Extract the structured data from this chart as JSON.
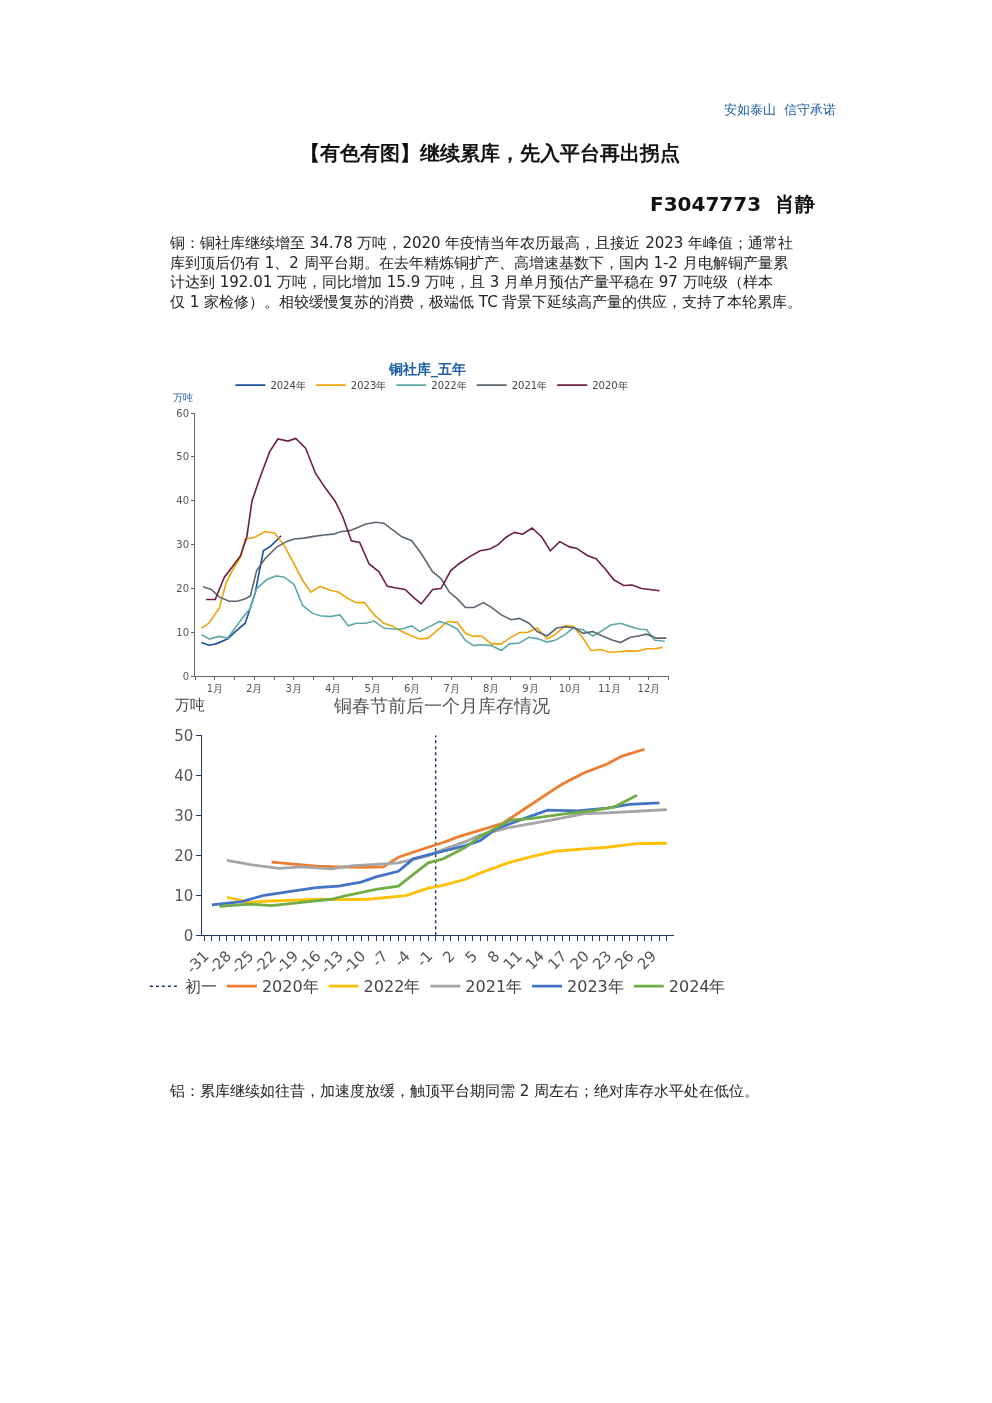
{
  "chart_data": [
    {
      "type": "line",
      "title": "铜社库_五年",
      "ylabel": "万吨",
      "legend": "top",
      "marker": "none",
      "line_style": "solid",
      "xlim": [
        0.5,
        12.5
      ],
      "xticks": [
        {
          "value": 0.5,
          "label": null
        },
        {
          "value": 1,
          "label": "1月"
        },
        {
          "value": 1.5,
          "label": null
        },
        {
          "value": 2,
          "label": "2月"
        },
        {
          "value": 2.5,
          "label": null
        },
        {
          "value": 3,
          "label": "3月"
        },
        {
          "value": 3.5,
          "label": null
        },
        {
          "value": 4,
          "label": "4月"
        },
        {
          "value": 4.5,
          "label": null
        },
        {
          "value": 5,
          "label": "5月"
        },
        {
          "value": 5.5,
          "label": null
        },
        {
          "value": 6,
          "label": "6月"
        },
        {
          "value": 6.5,
          "label": null
        },
        {
          "value": 7,
          "label": "7月"
        },
        {
          "value": 7.5,
          "label": null
        },
        {
          "value": 8,
          "label": "8月"
        },
        {
          "value": 8.5,
          "label": null
        },
        {
          "value": 9,
          "label": "9月"
        },
        {
          "value": 9.5,
          "label": null
        },
        {
          "value": 10,
          "label": "10月"
        },
        {
          "value": 10.5,
          "label": null
        },
        {
          "value": 11,
          "label": "11月"
        },
        {
          "value": 11.5,
          "label": null
        },
        {
          "value": 12,
          "label": "12月"
        },
        {
          "value": 12.5,
          "label": null
        }
      ],
      "ylim": [
        0,
        60
      ],
      "yticks": [
        0,
        10,
        20,
        30,
        40,
        50,
        60
      ],
      "series": [
        {
          "name": "2024年",
          "color": "#1f4e9c",
          "x": [
            0.66,
            0.85,
            1.03,
            1.32,
            1.52,
            1.77,
            2.02,
            2.23,
            2.43,
            2.68
          ],
          "values": [
            7.7,
            7.1,
            7.4,
            8.5,
            10.2,
            12.1,
            18.9,
            28.6,
            29.8,
            32.0
          ]
        },
        {
          "name": "2023年",
          "color": "#f0a30a",
          "x": [
            0.66,
            0.85,
            1.11,
            1.28,
            1.44,
            1.65,
            1.77,
            2.02,
            2.27,
            2.52,
            2.76,
            3.01,
            3.22,
            3.43,
            3.67,
            3.92,
            4.13,
            4.38,
            4.58,
            4.79,
            5.04,
            5.28,
            5.49,
            5.74,
            5.99,
            6.19,
            6.4,
            6.65,
            6.9,
            7.14,
            7.35,
            7.56,
            7.76,
            8.01,
            8.26,
            8.47,
            8.72,
            8.92,
            9.17,
            9.42,
            9.62,
            9.87,
            10.08,
            10.33,
            10.53,
            10.78,
            10.99,
            11.23,
            11.48,
            11.7,
            11.94,
            12.15,
            12.35
          ],
          "values": [
            11.0,
            12.1,
            15.5,
            21.1,
            24.1,
            27.1,
            31.3,
            31.7,
            33.0,
            32.6,
            29.8,
            25.6,
            21.9,
            19.2,
            20.5,
            19.6,
            19.2,
            17.7,
            16.8,
            16.8,
            14.0,
            12.1,
            11.5,
            10.2,
            9.2,
            8.5,
            8.7,
            10.6,
            12.5,
            12.3,
            9.8,
            9.1,
            9.2,
            7.4,
            7.4,
            8.7,
            10.0,
            10.0,
            11.0,
            8.5,
            9.5,
            11.5,
            11.4,
            8.7,
            5.9,
            6.1,
            5.5,
            5.6,
            5.8,
            5.7,
            6.3,
            6.3,
            6.6
          ]
        },
        {
          "name": "2022年",
          "color": "#5fa8a8",
          "x": [
            0.66,
            0.86,
            1.11,
            1.32,
            1.48,
            1.69,
            1.9,
            2.06,
            2.31,
            2.56,
            2.76,
            3.01,
            3.22,
            3.47,
            3.67,
            3.92,
            4.17,
            4.38,
            4.58,
            4.83,
            5.04,
            5.28,
            5.49,
            5.74,
            5.99,
            6.19,
            6.48,
            6.69,
            6.9,
            7.14,
            7.35,
            7.56,
            7.76,
            8.01,
            8.26,
            8.47,
            8.72,
            8.96,
            9.17,
            9.42,
            9.62,
            9.87,
            10.08,
            10.33,
            10.58,
            10.78,
            11.03,
            11.28,
            11.48,
            11.73,
            11.94,
            12.15,
            12.4
          ],
          "values": [
            9.5,
            8.5,
            9.1,
            8.7,
            10.6,
            13.2,
            15.5,
            20.0,
            22.0,
            22.9,
            22.6,
            20.9,
            16.2,
            14.4,
            13.8,
            13.6,
            14.0,
            11.5,
            12.1,
            12.1,
            12.6,
            11.0,
            10.8,
            10.8,
            11.5,
            10.2,
            11.5,
            12.5,
            11.9,
            10.8,
            8.2,
            7.0,
            7.2,
            7.0,
            5.9,
            7.4,
            7.6,
            8.9,
            8.6,
            7.8,
            8.2,
            9.5,
            11.0,
            10.6,
            9.2,
            10.2,
            11.7,
            12.1,
            11.5,
            10.8,
            10.6,
            8.2,
            8.0
          ]
        },
        {
          "name": "2021年",
          "color": "#5b6670",
          "x": [
            0.7,
            0.91,
            1.11,
            1.36,
            1.57,
            1.77,
            1.9,
            2.06,
            2.27,
            2.56,
            2.81,
            3.01,
            3.26,
            3.51,
            3.76,
            4.0,
            4.21,
            4.42,
            4.62,
            4.83,
            5.08,
            5.28,
            5.49,
            5.74,
            5.99,
            6.23,
            6.52,
            6.73,
            6.94,
            7.14,
            7.35,
            7.56,
            7.81,
            8.01,
            8.26,
            8.51,
            8.72,
            8.96,
            9.17,
            9.42,
            9.66,
            9.87,
            10.12,
            10.33,
            10.58,
            10.82,
            11.07,
            11.28,
            11.53,
            11.73,
            11.94,
            12.19,
            12.44
          ],
          "values": [
            20.4,
            19.8,
            18.1,
            17.1,
            17.1,
            17.7,
            18.3,
            24.1,
            26.8,
            29.4,
            30.7,
            31.3,
            31.5,
            31.9,
            32.2,
            32.4,
            33.0,
            33.2,
            33.9,
            34.7,
            35.1,
            34.9,
            33.5,
            31.8,
            30.9,
            28.0,
            23.8,
            22.3,
            19.2,
            17.7,
            15.7,
            15.7,
            16.8,
            15.7,
            14.0,
            12.9,
            13.2,
            12.1,
            10.2,
            9.2,
            11.0,
            11.3,
            11.0,
            9.8,
            10.2,
            9.2,
            8.3,
            7.7,
            8.9,
            9.2,
            9.6,
            8.7,
            8.7
          ]
        },
        {
          "name": "2020年",
          "color": "#6d1f3f",
          "x": [
            0.78,
            1.01,
            1.24,
            1.44,
            1.65,
            1.81,
            1.94,
            2.14,
            2.39,
            2.6,
            2.85,
            3.05,
            3.3,
            3.55,
            3.8,
            4.05,
            4.25,
            4.46,
            4.67,
            4.91,
            5.16,
            5.37,
            5.57,
            5.82,
            6.07,
            6.23,
            6.52,
            6.73,
            6.98,
            7.18,
            7.43,
            7.72,
            7.97,
            8.18,
            8.38,
            8.59,
            8.8,
            9.04,
            9.29,
            9.5,
            9.74,
            9.99,
            10.16,
            10.45,
            10.66,
            10.91,
            11.11,
            11.36,
            11.57,
            11.81,
            12.02,
            12.27
          ],
          "values": [
            17.5,
            17.5,
            22.6,
            24.9,
            27.5,
            31.7,
            39.9,
            45.2,
            51.2,
            54.1,
            53.6,
            54.2,
            52.0,
            46.3,
            42.9,
            39.9,
            36.2,
            30.9,
            30.5,
            25.6,
            23.8,
            20.5,
            20.2,
            19.8,
            17.7,
            16.5,
            19.8,
            20.0,
            24.1,
            25.6,
            27.1,
            28.6,
            29.0,
            30.0,
            31.7,
            32.8,
            32.4,
            33.8,
            31.7,
            28.6,
            30.7,
            29.5,
            29.2,
            27.5,
            26.8,
            24.3,
            22.0,
            20.7,
            20.8,
            20.0,
            19.8,
            19.5
          ]
        }
      ],
      "annotations": [
        "安如泰山  信守承诺",
        "【有色有图】继续累库，先入平台再出拐点",
        "F3047773  肖静",
        "铜：铜社库继续增至 34.78 万吨，2020 年疫情当年农历最高，且接近 2023 年峰值；通常社库到顶后仍有 1、2 周平台期。在去年精炼铜扩产、高增速基数下，国内 1-2 月电解铜产量累计达到 192.01 万吨，同比增加 15.9 万吨，且 3 月单月预估产量平稳在 97 万吨级（样本仅 1 家检修）。相较缓慢复苏的消费，极端低 TC 背景下延续高产量的供应，支持了本轮累库。"
      ]
    },
    {
      "type": "line",
      "title": "铜春节前后一个月库存情况",
      "ylabel": "万吨",
      "legend": "bottom",
      "marker": "none",
      "line_style": "solid",
      "xlim": [
        -31.3,
        31.9
      ],
      "xticks": [
        -31,
        {
          "value": -30,
          "label": null
        },
        {
          "value": -29,
          "label": null
        },
        -28,
        {
          "value": -27,
          "label": null
        },
        {
          "value": -26,
          "label": null
        },
        -25,
        {
          "value": -24,
          "label": null
        },
        {
          "value": -23,
          "label": null
        },
        -22,
        {
          "value": -21,
          "label": null
        },
        {
          "value": -20,
          "label": null
        },
        -19,
        {
          "value": -18,
          "label": null
        },
        {
          "value": -17,
          "label": null
        },
        -16,
        {
          "value": -15,
          "label": null
        },
        {
          "value": -14,
          "label": null
        },
        -13,
        {
          "value": -12,
          "label": null
        },
        {
          "value": -11,
          "label": null
        },
        -10,
        {
          "value": -9,
          "label": null
        },
        {
          "value": -8,
          "label": null
        },
        -7,
        {
          "value": -6,
          "label": null
        },
        {
          "value": -5,
          "label": null
        },
        -4,
        {
          "value": -3,
          "label": null
        },
        {
          "value": -2,
          "label": null
        },
        -1,
        {
          "value": 0,
          "label": null
        },
        {
          "value": 1,
          "label": null
        },
        2,
        {
          "value": 3,
          "label": null
        },
        {
          "value": 4,
          "label": null
        },
        5,
        {
          "value": 6,
          "label": null
        },
        {
          "value": 7,
          "label": null
        },
        8,
        {
          "value": 9,
          "label": null
        },
        {
          "value": 10,
          "label": null
        },
        11,
        {
          "value": 12,
          "label": null
        },
        {
          "value": 13,
          "label": null
        },
        14,
        {
          "value": 15,
          "label": null
        },
        {
          "value": 16,
          "label": null
        },
        17,
        {
          "value": 18,
          "label": null
        },
        {
          "value": 19,
          "label": null
        },
        20,
        {
          "value": 21,
          "label": null
        },
        {
          "value": 22,
          "label": null
        },
        23,
        {
          "value": 24,
          "label": null
        },
        {
          "value": 25,
          "label": null
        },
        26,
        {
          "value": 27,
          "label": null
        },
        {
          "value": 28,
          "label": null
        },
        29,
        {
          "value": 30,
          "label": null
        },
        {
          "value": 31,
          "label": null
        }
      ],
      "ylim": [
        0,
        50
      ],
      "yticks": [
        0,
        10,
        20,
        30,
        40,
        50
      ],
      "ref_lines": [
        {
          "axis": "x",
          "value": 0,
          "label": "初一",
          "color": "#1f3864",
          "line_style": "dotted"
        }
      ],
      "series": [
        {
          "name": "2020年",
          "color": "#ed7d31",
          "x": [
            -22,
            -19,
            -16,
            -13,
            -10,
            -7,
            -5,
            -1,
            1,
            3,
            6,
            9,
            12,
            15,
            17,
            20,
            23,
            25,
            28
          ],
          "values": [
            18.3,
            17.8,
            17.3,
            17.1,
            17.0,
            17.1,
            19.5,
            22.0,
            23.2,
            24.6,
            26.3,
            28.0,
            31.7,
            35.4,
            37.8,
            40.7,
            42.8,
            44.8,
            46.5
          ]
        },
        {
          "name": "2022年",
          "color": "#ffc000",
          "x": [
            -28,
            -25,
            -23,
            -19,
            -15,
            -13,
            -9,
            -4,
            -1,
            1,
            4,
            6,
            10,
            13,
            16,
            20,
            23,
            27,
            31
          ],
          "values": [
            9.5,
            8.2,
            8.5,
            8.8,
            9.0,
            8.9,
            9.0,
            9.9,
            11.8,
            12.5,
            14.0,
            15.6,
            18.3,
            19.7,
            21.0,
            21.6,
            22.0,
            22.9,
            23.0
          ]
        },
        {
          "name": "2021年",
          "color": "#a5a5a5",
          "x": [
            -28,
            -25,
            -21,
            -18,
            -14,
            -11,
            -8,
            -5,
            -1,
            1,
            4,
            6,
            10,
            13,
            16,
            20,
            23,
            27,
            31
          ],
          "values": [
            18.7,
            17.7,
            16.7,
            17.1,
            16.6,
            17.4,
            17.7,
            18.1,
            19.9,
            21.4,
            23.4,
            25.1,
            27.0,
            28.0,
            29.0,
            30.4,
            30.6,
            31.0,
            31.4
          ]
        },
        {
          "name": "2023年",
          "color": "#4472c4",
          "x": [
            -30,
            -26,
            -23,
            -19,
            -16,
            -13,
            -10,
            -8,
            -5,
            -3,
            -1,
            1,
            4,
            6,
            8,
            11,
            15,
            19,
            23,
            26,
            30
          ],
          "values": [
            7.6,
            8.4,
            10.0,
            11.1,
            11.9,
            12.3,
            13.3,
            14.6,
            16.0,
            19.1,
            20.1,
            21.0,
            22.4,
            23.7,
            26.5,
            28.6,
            31.3,
            31.1,
            31.8,
            32.7,
            33.1
          ]
        },
        {
          "name": "2024年",
          "color": "#70ad47",
          "x": [
            -29,
            -25,
            -22,
            -18,
            -14,
            -12,
            -8,
            -5,
            -3,
            -1,
            1,
            4,
            6,
            10,
            13,
            17,
            21,
            24,
            27
          ],
          "values": [
            7.2,
            7.8,
            7.4,
            8.2,
            9.0,
            9.9,
            11.5,
            12.3,
            15.2,
            18.1,
            19.1,
            22.0,
            24.7,
            28.8,
            29.2,
            30.3,
            31.1,
            32.1,
            35.0
          ]
        }
      ],
      "annotations": [
        "铝：累库继续如往昔，加速度放缓，触顶平台期同需 2 周左右；绝对库存水平处在低位。"
      ]
    }
  ]
}
